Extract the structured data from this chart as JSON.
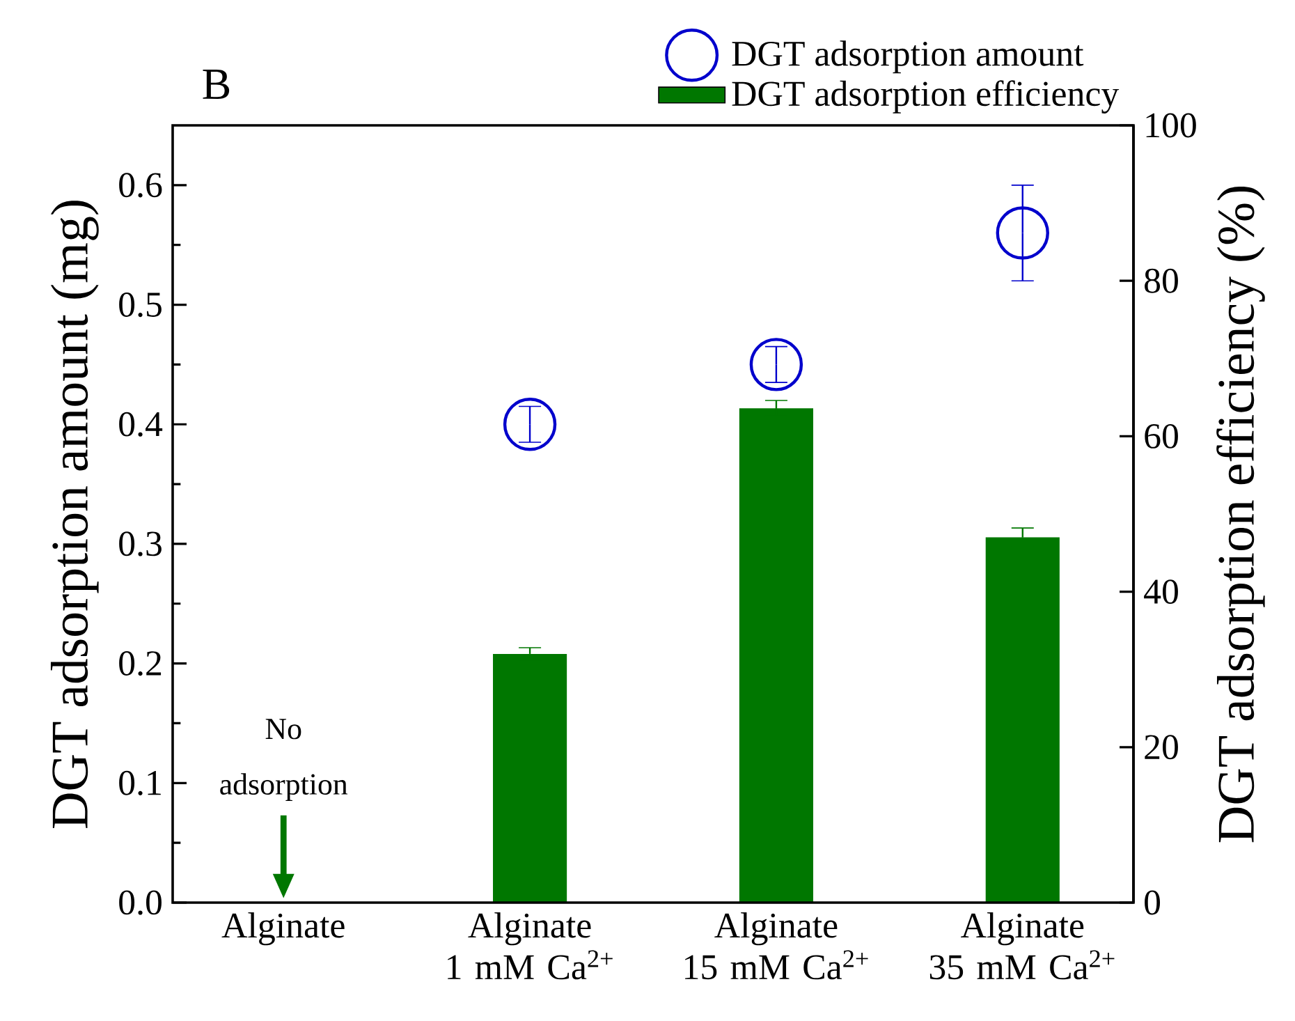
{
  "chart_data": {
    "type": "bar",
    "title": "B",
    "ylabel": "DGT adsorption amount (mg)",
    "y2label": "DGT adsorption efficiency (%)",
    "categories": [
      "Alginate",
      "Alginate\n1 mM Ca$^{2+}$",
      "Alginate\n15 mM Ca$^{2+}$",
      "Alginate\n35 mM Ca$^{2+}$"
    ],
    "series": [
      {
        "name": "DGT adsorption amount",
        "type": "scatter",
        "color": "#0000cc",
        "values": [
          null,
          0.4,
          0.45,
          0.56
        ],
        "errors": [
          null,
          0.015,
          0.015,
          0.04
        ]
      },
      {
        "name": "DGT adsorption efficiency",
        "axis": "y2",
        "color": "#007700",
        "values": [
          null,
          32,
          63.6,
          47
        ],
        "errors": [
          null,
          0.8,
          1,
          1.2
        ]
      }
    ],
    "ylim": [
      0,
      0.65
    ],
    "yticks": [
      {
        "value": 0,
        "label": "0.0"
      },
      {
        "value": 0.1,
        "label": "0.1"
      },
      {
        "value": 0.2,
        "label": "0.2"
      },
      {
        "value": 0.3,
        "label": "0.3"
      },
      {
        "value": 0.4,
        "label": "0.4"
      },
      {
        "value": 0.5,
        "label": "0.5"
      },
      {
        "value": 0.6,
        "label": "0.6"
      }
    ],
    "y2lim": [
      0,
      100
    ],
    "y2ticks": [
      0,
      20,
      40,
      60,
      80,
      100
    ],
    "annotations": [
      "No adsorption"
    ],
    "legend": "top right",
    "marker": "circle"
  }
}
